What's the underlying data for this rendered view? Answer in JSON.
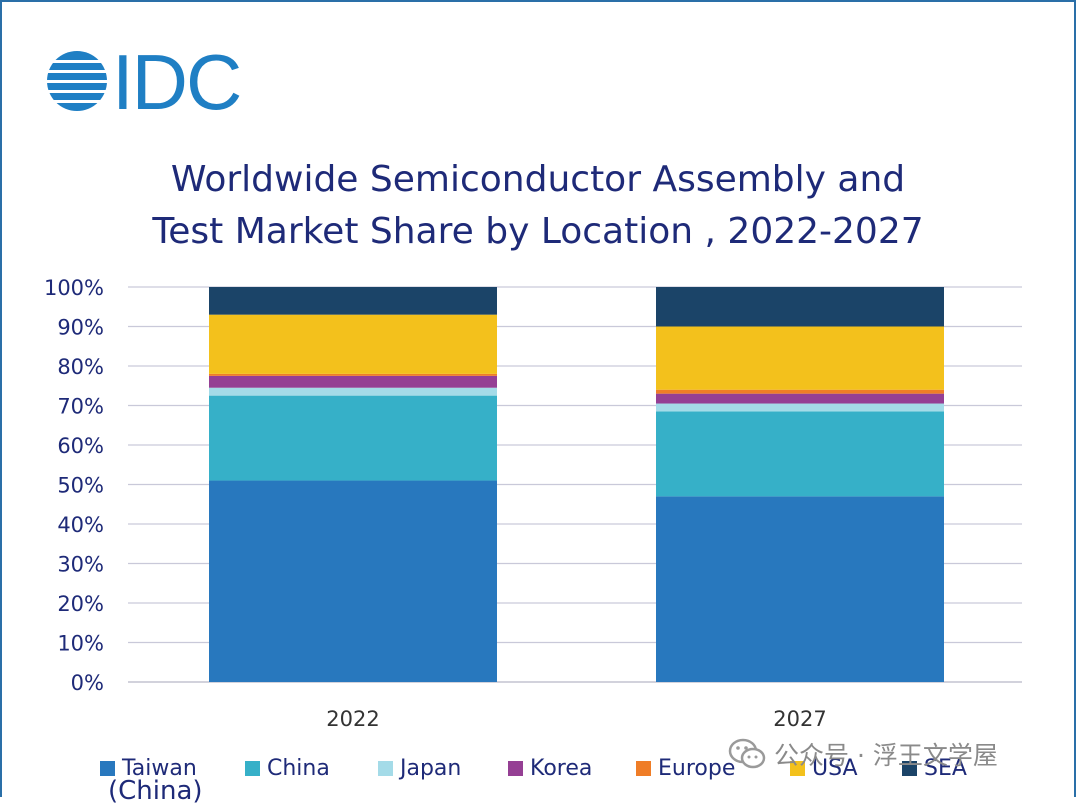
{
  "brand": {
    "logo_text": "IDC",
    "color": "#1f7fc4"
  },
  "chart_data": {
    "type": "bar",
    "stacked": true,
    "title": "Worldwide Semiconductor Assembly and Test Market Share by Location , 2022-2027",
    "title_lines": [
      "Worldwide Semiconductor Assembly and",
      "Test Market Share by Location , 2022-2027"
    ],
    "categories": [
      "2022",
      "2027"
    ],
    "series": [
      {
        "name": "Taiwan",
        "color": "#2878be",
        "values": [
          51,
          47
        ]
      },
      {
        "name": "China",
        "color": "#36b0c8",
        "values": [
          21.5,
          21.5
        ]
      },
      {
        "name": "Japan",
        "color": "#a4dbe8",
        "values": [
          2,
          2
        ]
      },
      {
        "name": "Korea",
        "color": "#953f94",
        "values": [
          3,
          2.5
        ]
      },
      {
        "name": "Europe",
        "color": "#ef7d27",
        "values": [
          0.5,
          1
        ]
      },
      {
        "name": "USA",
        "color": "#f3c11c",
        "values": [
          15,
          16
        ]
      },
      {
        "name": "SEA",
        "color": "#1b4468",
        "values": [
          7,
          10
        ]
      }
    ],
    "y_ticks": [
      "0%",
      "10%",
      "20%",
      "30%",
      "40%",
      "50%",
      "60%",
      "70%",
      "80%",
      "90%",
      "100%"
    ],
    "ylim": [
      0,
      100
    ],
    "xlabel": "",
    "ylabel": "",
    "grid": true,
    "legend_position": "bottom",
    "legend_subtext": "(China)"
  },
  "watermark": {
    "text": "公众号 · 浮王文学屋"
  }
}
